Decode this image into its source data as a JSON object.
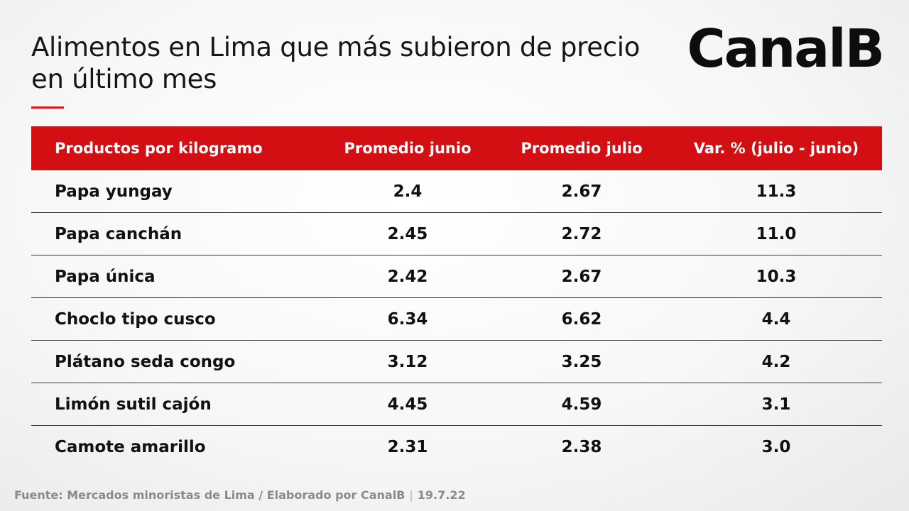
{
  "title": "Alimentos en Lima que más subieron de precio en último mes",
  "logo": "CanalB",
  "colors": {
    "accent": "#d40f14",
    "text": "#111111",
    "muted": "#8a8a8a"
  },
  "table": {
    "headers": [
      "Productos por kilogramo",
      "Promedio junio",
      "Promedio julio",
      "Var. % (julio - junio)"
    ],
    "rows": [
      [
        "Papa yungay",
        "2.4",
        "2.67",
        "11.3"
      ],
      [
        "Papa canchán",
        "2.45",
        "2.72",
        "11.0"
      ],
      [
        "Papa única",
        "2.42",
        "2.67",
        "10.3"
      ],
      [
        "Choclo tipo cusco",
        "6.34",
        "6.62",
        "4.4"
      ],
      [
        "Plátano seda congo",
        "3.12",
        "3.25",
        "4.2"
      ],
      [
        "Limón sutil cajón",
        "4.45",
        "4.59",
        "3.1"
      ],
      [
        "Camote amarillo",
        "2.31",
        "2.38",
        "3.0"
      ]
    ]
  },
  "footer": {
    "source": "Fuente: Mercados minoristas de Lima / Elaborado por CanalB",
    "separator": "|",
    "date": "19.7.22"
  }
}
